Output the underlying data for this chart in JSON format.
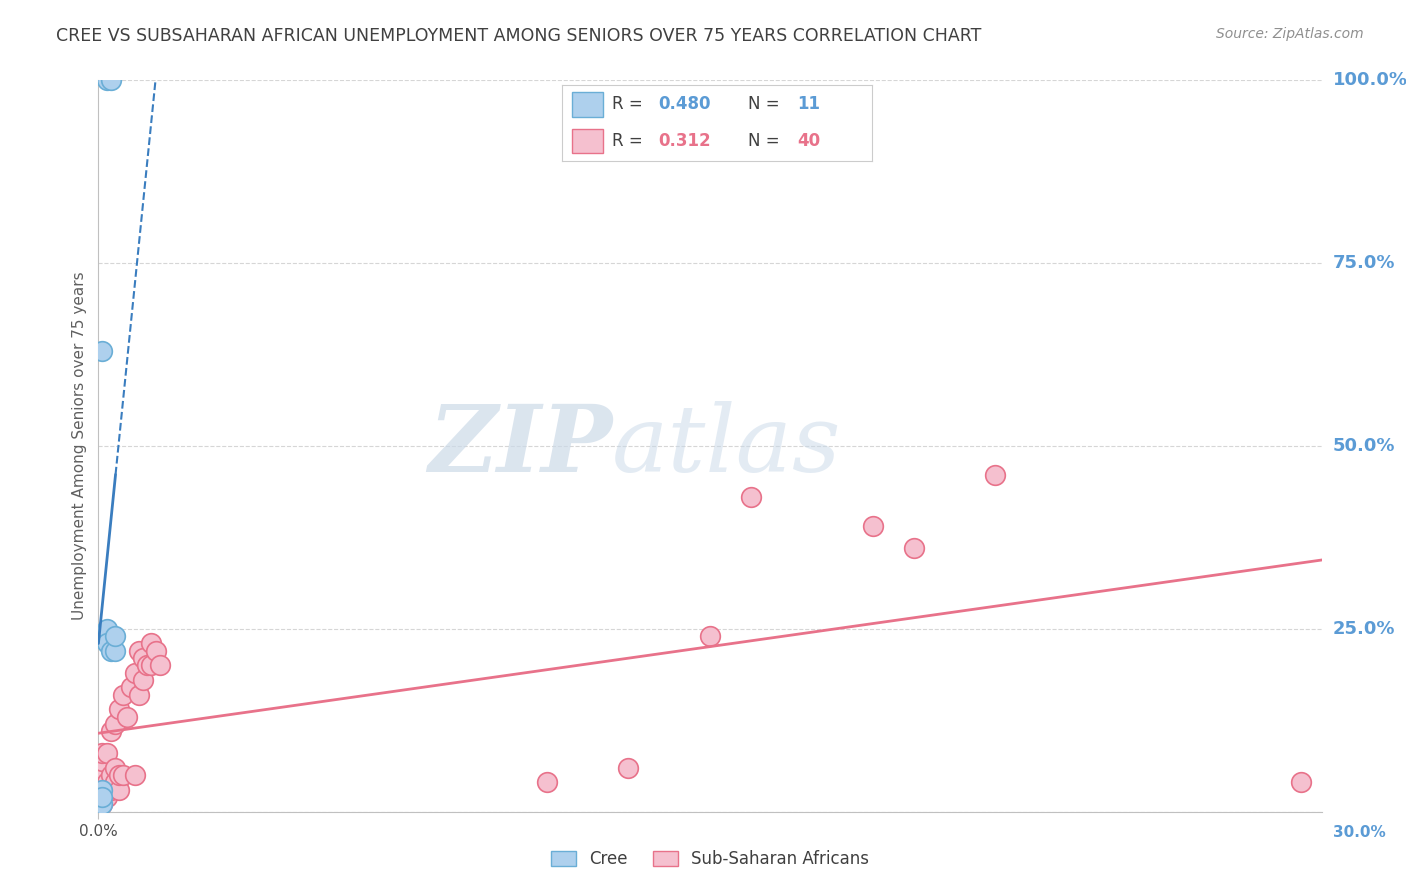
{
  "title": "CREE VS SUBSAHARAN AFRICAN UNEMPLOYMENT AMONG SENIORS OVER 75 YEARS CORRELATION CHART",
  "source": "Source: ZipAtlas.com",
  "ylabel": "Unemployment Among Seniors over 75 years",
  "xmin": 0.0,
  "xmax": 0.3,
  "ymin": 0.0,
  "ymax": 1.0,
  "yticks": [
    0.0,
    0.25,
    0.5,
    0.75,
    1.0
  ],
  "ytick_labels": [
    "",
    "25.0%",
    "50.0%",
    "75.0%",
    "100.0%"
  ],
  "cree_color": "#aed0ed",
  "cree_edge_color": "#6aaed6",
  "cree_line_color": "#3a7dbf",
  "subsaharan_color": "#f5c0cf",
  "subsaharan_edge_color": "#e8728a",
  "subsaharan_line_color": "#e8728a",
  "cree_x": [
    0.001,
    0.001,
    0.001,
    0.002,
    0.002,
    0.003,
    0.004,
    0.004,
    0.001,
    0.002,
    0.003
  ],
  "cree_y": [
    0.01,
    0.03,
    0.02,
    0.25,
    0.23,
    0.22,
    0.22,
    0.24,
    0.63,
    1.0,
    1.0
  ],
  "subsaharan_x": [
    0.001,
    0.001,
    0.001,
    0.001,
    0.001,
    0.002,
    0.002,
    0.002,
    0.003,
    0.003,
    0.003,
    0.004,
    0.004,
    0.004,
    0.005,
    0.005,
    0.005,
    0.006,
    0.006,
    0.007,
    0.008,
    0.009,
    0.009,
    0.01,
    0.01,
    0.011,
    0.011,
    0.012,
    0.013,
    0.013,
    0.014,
    0.015,
    0.11,
    0.13,
    0.15,
    0.16,
    0.19,
    0.2,
    0.22,
    0.295
  ],
  "subsaharan_y": [
    0.01,
    0.03,
    0.05,
    0.07,
    0.08,
    0.02,
    0.04,
    0.08,
    0.03,
    0.05,
    0.11,
    0.04,
    0.06,
    0.12,
    0.03,
    0.05,
    0.14,
    0.05,
    0.16,
    0.13,
    0.17,
    0.05,
    0.19,
    0.16,
    0.22,
    0.18,
    0.21,
    0.2,
    0.2,
    0.23,
    0.22,
    0.2,
    0.04,
    0.06,
    0.24,
    0.43,
    0.39,
    0.36,
    0.46,
    0.04
  ],
  "watermark_zip": "ZIP",
  "watermark_atlas": "atlas",
  "background_color": "#ffffff",
  "grid_color": "#cccccc",
  "title_color": "#404040",
  "right_axis_color": "#5b9bd5",
  "legend_color_cree": "#5b9bd5",
  "legend_color_sub": "#e8728a",
  "marker_size": 200,
  "cree_R": "0.480",
  "cree_N": "11",
  "sub_R": "0.312",
  "sub_N": "40"
}
